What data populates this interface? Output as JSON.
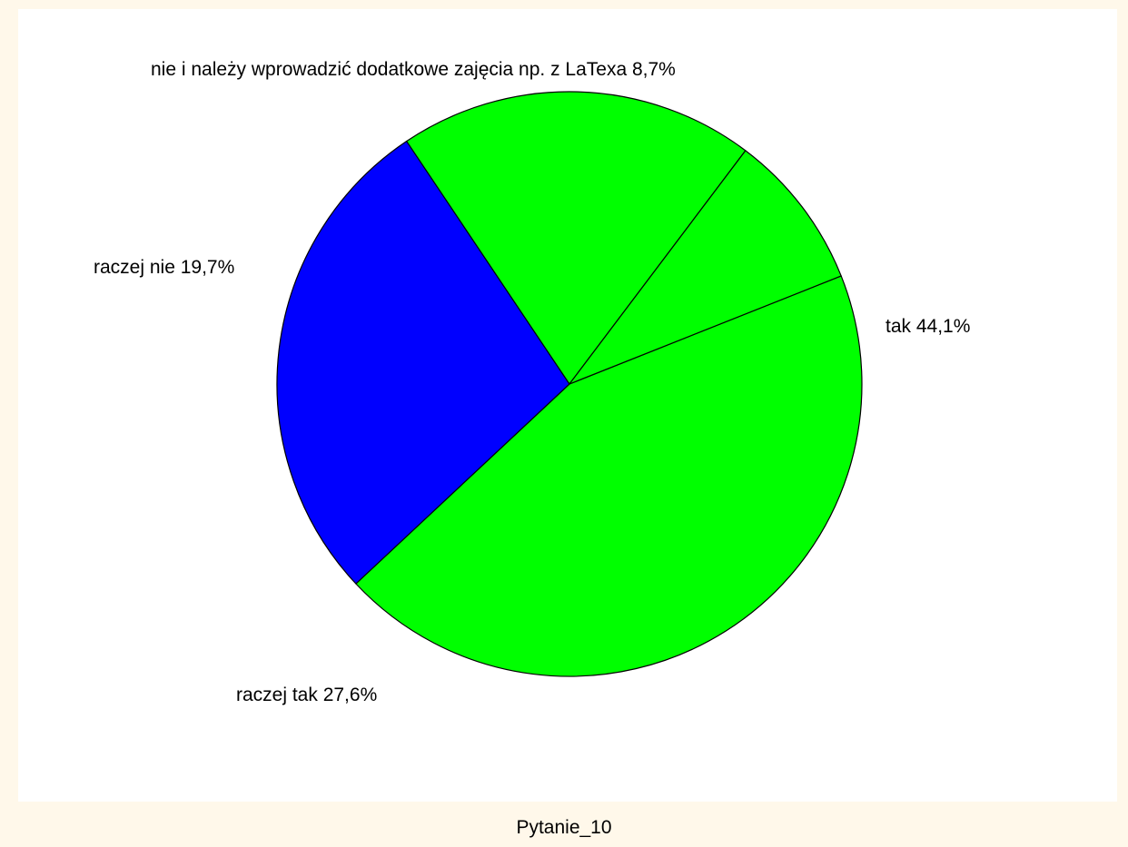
{
  "chart_data": {
    "type": "pie",
    "title": "Pytanie_10",
    "slices": [
      {
        "label": "tak 44,1%",
        "name": "tak",
        "value": 44.1,
        "color": "#00ff00"
      },
      {
        "label": "raczej tak 27,6%",
        "name": "raczej tak",
        "value": 27.6,
        "color": "#0000ff"
      },
      {
        "label": "raczej nie 19,7%",
        "name": "raczej nie",
        "value": 19.7,
        "color": "#00ff00"
      },
      {
        "label": "nie i należy wprowadzić dodatkowe zajęcia np. z LaTexa 8,7%",
        "name": "nie i należy wprowadzić dodatkowe zajęcia np. z LaTexa",
        "value": 8.7,
        "color": "#00ff00"
      }
    ],
    "legend": "none"
  }
}
